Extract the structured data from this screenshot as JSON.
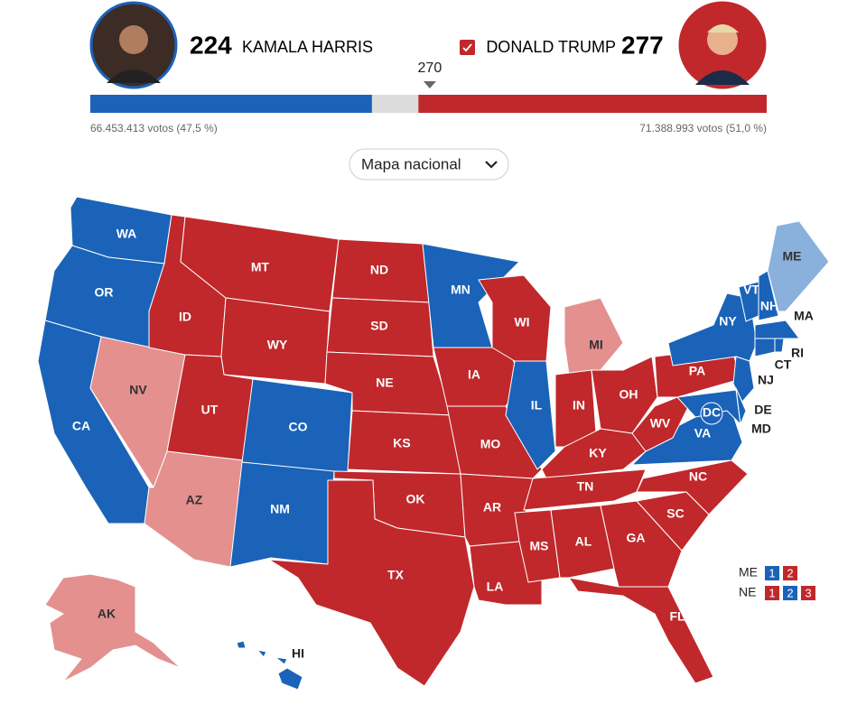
{
  "candidates": [
    {
      "votes": 224,
      "name": "KAMALA HARRIS",
      "color": "#1a63b8",
      "popular": "66.453.413 votos (47,5 %)"
    },
    {
      "votes": 277,
      "name": "DONALD TRUMP",
      "color": "#c0282b",
      "popular": "71.388.993 votos (51,0 %)",
      "winner": true
    }
  ],
  "threshold": 270,
  "xlim": [
    0,
    538
  ],
  "dropdown": {
    "label": "Mapa nacional"
  },
  "states": [
    {
      "label": "WA",
      "color": "#1a63b8"
    },
    {
      "label": "OR",
      "color": "#1a63b8"
    },
    {
      "label": "CA",
      "color": "#1a63b8"
    },
    {
      "label": "NV",
      "color": "#e3908f"
    },
    {
      "label": "ID",
      "color": "#c0282b"
    },
    {
      "label": "MT",
      "color": "#c0282b"
    },
    {
      "label": "WY",
      "color": "#c0282b"
    },
    {
      "label": "UT",
      "color": "#c0282b"
    },
    {
      "label": "AZ",
      "color": "#e3908f"
    },
    {
      "label": "CO",
      "color": "#1a63b8"
    },
    {
      "label": "NM",
      "color": "#1a63b8"
    },
    {
      "label": "ND",
      "color": "#c0282b"
    },
    {
      "label": "SD",
      "color": "#c0282b"
    },
    {
      "label": "NE",
      "color": "#c0282b"
    },
    {
      "label": "KS",
      "color": "#c0282b"
    },
    {
      "label": "OK",
      "color": "#c0282b"
    },
    {
      "label": "TX",
      "color": "#c0282b"
    },
    {
      "label": "MN",
      "color": "#1a63b8"
    },
    {
      "label": "IA",
      "color": "#c0282b"
    },
    {
      "label": "MO",
      "color": "#c0282b"
    },
    {
      "label": "AR",
      "color": "#c0282b"
    },
    {
      "label": "LA",
      "color": "#c0282b"
    },
    {
      "label": "WI",
      "color": "#c0282b"
    },
    {
      "label": "IL",
      "color": "#1a63b8"
    },
    {
      "label": "MI",
      "color": "#e3908f"
    },
    {
      "label": "IN",
      "color": "#c0282b"
    },
    {
      "label": "OH",
      "color": "#c0282b"
    },
    {
      "label": "KY",
      "color": "#c0282b"
    },
    {
      "label": "TN",
      "color": "#c0282b"
    },
    {
      "label": "MS",
      "color": "#c0282b"
    },
    {
      "label": "AL",
      "color": "#c0282b"
    },
    {
      "label": "GA",
      "color": "#c0282b"
    },
    {
      "label": "FL",
      "color": "#c0282b"
    },
    {
      "label": "SC",
      "color": "#c0282b"
    },
    {
      "label": "NC",
      "color": "#c0282b"
    },
    {
      "label": "VA",
      "color": "#1a63b8"
    },
    {
      "label": "WV",
      "color": "#c0282b"
    },
    {
      "label": "PA",
      "color": "#c0282b"
    },
    {
      "label": "NY",
      "color": "#1a63b8"
    },
    {
      "label": "NJ",
      "color": "#1a63b8"
    },
    {
      "label": "MD",
      "color": "#1a63b8"
    },
    {
      "label": "DE",
      "color": "#1a63b8"
    },
    {
      "label": "VT",
      "color": "#1a63b8"
    },
    {
      "label": "NH",
      "color": "#1a63b8"
    },
    {
      "label": "ME",
      "color": "#8ab0dc"
    },
    {
      "label": "MA",
      "color": "#1a63b8"
    },
    {
      "label": "CT",
      "color": "#1a63b8"
    },
    {
      "label": "RI",
      "color": "#1a63b8"
    },
    {
      "label": "DC",
      "color": "#1a63b8"
    },
    {
      "label": "AK",
      "color": "#e3908f"
    },
    {
      "label": "HI",
      "color": "#1a63b8"
    }
  ],
  "split_votes": [
    {
      "label": "ME",
      "districts": [
        {
          "label": 1,
          "color": "#1a63b8"
        },
        {
          "label": 2,
          "color": "#c0282b"
        }
      ]
    },
    {
      "label": "NE",
      "districts": [
        {
          "label": 1,
          "color": "#c0282b"
        },
        {
          "label": 2,
          "color": "#1a63b8"
        },
        {
          "label": 3,
          "color": "#c0282b"
        }
      ]
    }
  ]
}
